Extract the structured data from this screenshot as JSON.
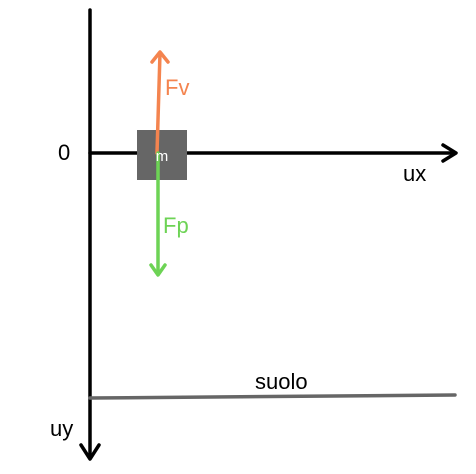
{
  "labels": {
    "origin": "0",
    "x_axis": "ux",
    "y_axis": "uy",
    "mass": "m",
    "force_up": "Fv",
    "force_down": "Fp",
    "ground": "suolo"
  },
  "colors": {
    "axis": "#000000",
    "mass_fill": "#666666",
    "mass_label": "#ffffff",
    "force_up": "#f4844f",
    "force_down": "#6dd355",
    "ground": "#666666"
  }
}
